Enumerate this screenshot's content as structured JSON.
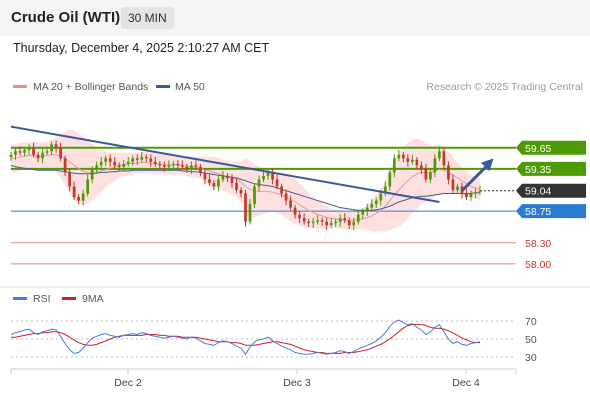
{
  "header": {
    "title": "Crude Oil (WTI)",
    "timeframe": "30 MIN",
    "timestamp": "Thursday, December 4, 2025 2:10:27 AM CET"
  },
  "legend": {
    "ma20_bb": "MA 20 + Bollinger Bands",
    "ma50": "MA 50",
    "rsi": "RSI",
    "rsi_ma": "9MA"
  },
  "credit": "Research © 2025 Trading Central",
  "colors": {
    "resistance": "#4e9a06",
    "support": "#2b7bd3",
    "minor_support": "#e88a8a",
    "current": "#333333",
    "trendline": "#3b5998",
    "bullish": "#4e9a06",
    "bearish": "#c0392b",
    "bollinger_fill": "#fde1e1",
    "ma20": "#e89b9b",
    "ma50": "#4a5a86",
    "rsi": "#4a7de0",
    "rsi_ma": "#cc2222"
  },
  "chart_data": [
    {
      "type": "candlestick",
      "ylim": [
        57.8,
        60.3
      ],
      "x_ticks": [
        "Dec 2",
        "Dec 3",
        "Dec 4"
      ],
      "levels": [
        {
          "value": 59.65,
          "label": "59.65",
          "kind": "resistance"
        },
        {
          "value": 59.35,
          "label": "59.35",
          "kind": "resistance"
        },
        {
          "value": 59.04,
          "label": "59.04",
          "kind": "current"
        },
        {
          "value": 58.75,
          "label": "58.75",
          "kind": "support"
        },
        {
          "value": 58.3,
          "label": "58.30",
          "kind": "minor_support"
        },
        {
          "value": 58.0,
          "label": "58.00",
          "kind": "minor_support"
        }
      ],
      "close": [
        59.55,
        59.6,
        59.58,
        59.62,
        59.65,
        59.55,
        59.5,
        59.58,
        59.6,
        59.7,
        59.65,
        59.5,
        59.3,
        59.1,
        58.95,
        58.9,
        59.0,
        59.2,
        59.35,
        59.4,
        59.45,
        59.5,
        59.45,
        59.4,
        59.38,
        59.42,
        59.45,
        59.5,
        59.48,
        59.52,
        59.5,
        59.45,
        59.42,
        59.4,
        59.38,
        59.4,
        59.42,
        59.4,
        59.38,
        59.35,
        59.4,
        59.38,
        59.3,
        59.2,
        59.15,
        59.1,
        59.2,
        59.25,
        59.22,
        59.15,
        59.05,
        59.0,
        58.6,
        58.85,
        59.1,
        59.2,
        59.25,
        59.3,
        59.2,
        59.1,
        59.0,
        58.9,
        58.8,
        58.7,
        58.65,
        58.6,
        58.58,
        58.6,
        58.62,
        58.6,
        58.55,
        58.58,
        58.6,
        58.65,
        58.62,
        58.55,
        58.6,
        58.7,
        58.75,
        58.8,
        58.85,
        58.9,
        59.0,
        59.1,
        59.3,
        59.5,
        59.55,
        59.5,
        59.45,
        59.48,
        59.4,
        59.35,
        59.2,
        59.3,
        59.5,
        59.6,
        59.4,
        59.2,
        59.05,
        59.1,
        59.0,
        58.95,
        59.0,
        59.02,
        59.04
      ],
      "ma20": [
        59.5,
        59.5,
        59.52,
        59.53,
        59.54,
        59.54,
        59.53,
        59.53,
        59.54,
        59.55,
        59.55,
        59.53,
        59.5,
        59.45,
        59.4,
        59.35,
        59.32,
        59.3,
        59.3,
        59.31,
        59.32,
        59.34,
        59.36,
        59.38,
        59.4,
        59.41,
        59.42,
        59.43,
        59.43,
        59.44,
        59.44,
        59.43,
        59.42,
        59.42,
        59.41,
        59.41,
        59.41,
        59.41,
        59.4,
        59.39,
        59.38,
        59.37,
        59.36,
        59.34,
        59.32,
        59.3,
        59.28,
        59.26,
        59.24,
        59.22,
        59.2,
        59.16,
        59.1,
        59.06,
        59.04,
        59.03,
        59.03,
        59.03,
        59.02,
        59.0,
        58.98,
        58.95,
        58.92,
        58.88,
        58.84,
        58.8,
        58.76,
        58.73,
        58.7,
        58.68,
        58.66,
        58.65,
        58.64,
        58.63,
        58.62,
        58.62,
        58.62,
        58.63,
        58.64,
        58.66,
        58.68,
        58.72,
        58.76,
        58.82,
        58.9,
        58.98,
        59.05,
        59.12,
        59.18,
        59.24,
        59.28,
        59.3,
        59.3,
        59.3,
        59.32,
        59.34,
        59.33,
        59.3,
        59.26,
        59.22,
        59.18,
        59.14,
        59.1,
        59.08,
        59.06
      ],
      "bb_width": [
        0.2,
        0.2,
        0.2,
        0.2,
        0.2,
        0.2,
        0.2,
        0.2,
        0.2,
        0.22,
        0.25,
        0.3,
        0.38,
        0.45,
        0.5,
        0.5,
        0.48,
        0.45,
        0.4,
        0.35,
        0.3,
        0.25,
        0.22,
        0.2,
        0.18,
        0.17,
        0.16,
        0.15,
        0.15,
        0.15,
        0.15,
        0.15,
        0.15,
        0.15,
        0.14,
        0.14,
        0.14,
        0.14,
        0.14,
        0.14,
        0.15,
        0.15,
        0.16,
        0.18,
        0.2,
        0.22,
        0.22,
        0.22,
        0.22,
        0.23,
        0.25,
        0.3,
        0.4,
        0.4,
        0.38,
        0.35,
        0.32,
        0.3,
        0.28,
        0.28,
        0.28,
        0.3,
        0.32,
        0.32,
        0.3,
        0.28,
        0.25,
        0.22,
        0.2,
        0.18,
        0.16,
        0.14,
        0.13,
        0.13,
        0.13,
        0.13,
        0.13,
        0.14,
        0.15,
        0.18,
        0.22,
        0.26,
        0.3,
        0.36,
        0.42,
        0.48,
        0.52,
        0.54,
        0.54,
        0.52,
        0.5,
        0.46,
        0.42,
        0.38,
        0.36,
        0.36,
        0.34,
        0.3,
        0.26,
        0.22,
        0.2,
        0.18,
        0.16,
        0.15,
        0.15
      ],
      "ma50": [
        59.4,
        59.38,
        59.37,
        59.36,
        59.35,
        59.34,
        59.33,
        59.33,
        59.33,
        59.33,
        59.33,
        59.32,
        59.31,
        59.3,
        59.29,
        59.28,
        59.28,
        59.28,
        59.28,
        59.29,
        59.3,
        59.3,
        59.31,
        59.31,
        59.32,
        59.32,
        59.32,
        59.33,
        59.33,
        59.33,
        59.33,
        59.33,
        59.33,
        59.33,
        59.33,
        59.33,
        59.33,
        59.33,
        59.32,
        59.32,
        59.31,
        59.31,
        59.3,
        59.29,
        59.28,
        59.27,
        59.26,
        59.25,
        59.24,
        59.23,
        59.22,
        59.2,
        59.18,
        59.16,
        59.14,
        59.13,
        59.12,
        59.11,
        59.1,
        59.08,
        59.06,
        59.04,
        59.02,
        59.0,
        58.98,
        58.96,
        58.94,
        58.92,
        58.9,
        58.88,
        58.86,
        58.84,
        58.82,
        58.8,
        58.79,
        58.78,
        58.77,
        58.76,
        58.76,
        58.76,
        58.76,
        58.77,
        58.78,
        58.8,
        58.82,
        58.85,
        58.88,
        58.9,
        58.92,
        58.94,
        58.95,
        58.96,
        58.96,
        58.97,
        58.98,
        58.99,
        59.0,
        59.0,
        59.0,
        59.0,
        59.0,
        59.0,
        59.0,
        59.01,
        59.01
      ],
      "trendline": [
        [
          0,
          59.95
        ],
        [
          95,
          58.88
        ]
      ],
      "forecast_arrow": [
        [
          100,
          59.04
        ],
        [
          107,
          59.5
        ]
      ]
    },
    {
      "type": "line",
      "ylim": [
        20,
        80
      ],
      "y_ticks": [
        70,
        50,
        30
      ],
      "rsi": [
        55,
        57,
        58,
        60,
        61,
        57,
        55,
        58,
        59,
        61,
        60,
        53,
        45,
        38,
        34,
        35,
        40,
        46,
        51,
        53,
        55,
        56,
        54,
        53,
        52,
        54,
        55,
        56,
        55,
        57,
        56,
        54,
        53,
        52,
        51,
        52,
        53,
        52,
        51,
        50,
        52,
        51,
        48,
        45,
        44,
        43,
        46,
        48,
        47,
        45,
        42,
        40,
        33,
        41,
        47,
        49,
        50,
        52,
        48,
        45,
        42,
        40,
        38,
        35,
        34,
        33,
        33,
        34,
        35,
        34,
        33,
        34,
        35,
        37,
        36,
        34,
        36,
        39,
        41,
        43,
        45,
        48,
        52,
        57,
        64,
        69,
        71,
        68,
        66,
        67,
        63,
        60,
        55,
        58,
        63,
        66,
        58,
        50,
        45,
        47,
        44,
        43,
        45,
        46,
        47
      ],
      "rsi_ma": [
        52,
        52,
        53,
        54,
        55,
        56,
        56,
        57,
        57,
        58,
        58,
        57,
        55,
        52,
        49,
        46,
        44,
        43,
        43,
        44,
        46,
        48,
        50,
        52,
        53,
        54,
        54,
        54,
        54,
        54,
        55,
        55,
        55,
        54,
        54,
        53,
        53,
        53,
        52,
        52,
        52,
        52,
        51,
        50,
        49,
        48,
        47,
        47,
        47,
        46,
        46,
        45,
        43,
        43,
        43,
        44,
        45,
        46,
        47,
        47,
        46,
        45,
        44,
        42,
        40,
        38,
        37,
        36,
        35,
        35,
        34,
        34,
        34,
        34,
        35,
        35,
        35,
        36,
        37,
        38,
        40,
        42,
        44,
        47,
        50,
        54,
        58,
        62,
        65,
        66,
        66,
        66,
        65,
        63,
        62,
        62,
        61,
        59,
        57,
        54,
        51,
        49,
        47,
        46,
        46
      ]
    }
  ]
}
